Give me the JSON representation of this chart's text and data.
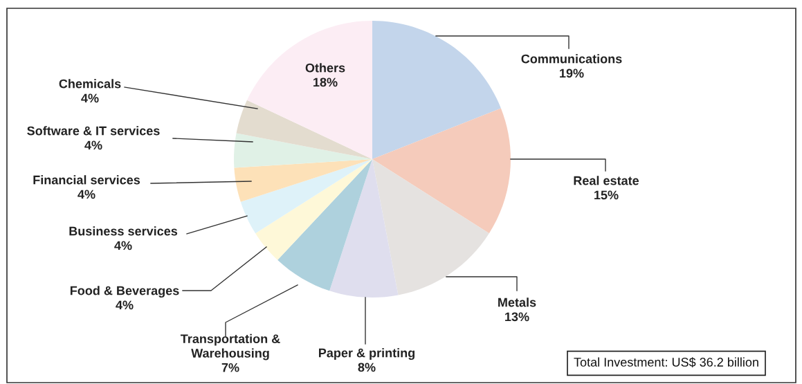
{
  "chart_data": {
    "type": "pie",
    "categories": [
      "Communications",
      "Real estate",
      "Metals",
      "Paper & printing",
      "Transportation &\nWarehousing",
      "Food & Beverages",
      "Business services",
      "Financial services",
      "Software & IT services",
      "Chemicals",
      "Others"
    ],
    "values": [
      19,
      15,
      13,
      8,
      7,
      4,
      4,
      4,
      4,
      4,
      18
    ],
    "colors": [
      "#c3d5eb",
      "#f5cbbb",
      "#e5e2e0",
      "#dfdeee",
      "#aed1dd",
      "#fef8d8",
      "#def2f9",
      "#fde1b8",
      "#e0f1e6",
      "#e3dccf",
      "#fcedf4"
    ],
    "value_labels": [
      "19%",
      "15%",
      "13%",
      "8%",
      "7%",
      "4%",
      "4%",
      "4%",
      "4%",
      "4%",
      "18%"
    ],
    "annotations": [
      "Total Investment: US$ 36.2 billion"
    ]
  }
}
